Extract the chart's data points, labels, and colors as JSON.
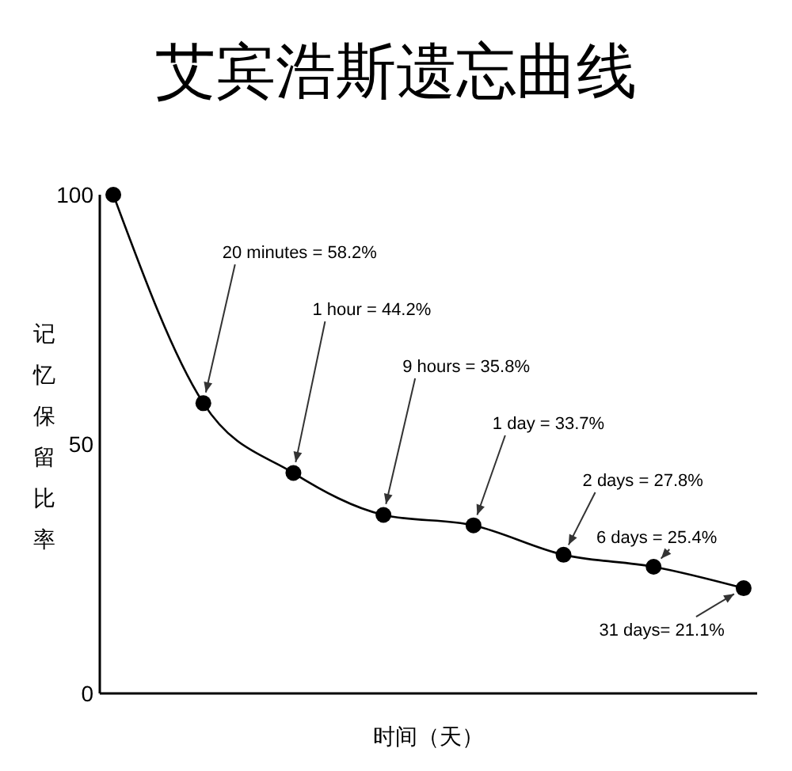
{
  "chart_data": {
    "type": "line",
    "title": "艾宾浩斯遗忘曲线",
    "xlabel": "时间（天）",
    "ylabel": "记忆保留比率",
    "categories": [
      null,
      null,
      null,
      null,
      null,
      null,
      null,
      null
    ],
    "series": [
      {
        "color": "#000000",
        "values": [
          100,
          58.2,
          44.2,
          35.8,
          33.7,
          27.8,
          25.4,
          21.1
        ]
      }
    ],
    "value_labels": [
      null,
      "20 minutes = 58.2%",
      "1 hour = 44.2%",
      "9 hours = 35.8%",
      "1 day = 33.7%",
      "2 days = 27.8%",
      "6 days = 25.4%",
      "31 days= 21.1%"
    ],
    "ylim": [
      0,
      100
    ],
    "yticks": [
      0,
      50,
      100
    ],
    "marker": "circle",
    "line_style": "solid",
    "grid": false
  }
}
